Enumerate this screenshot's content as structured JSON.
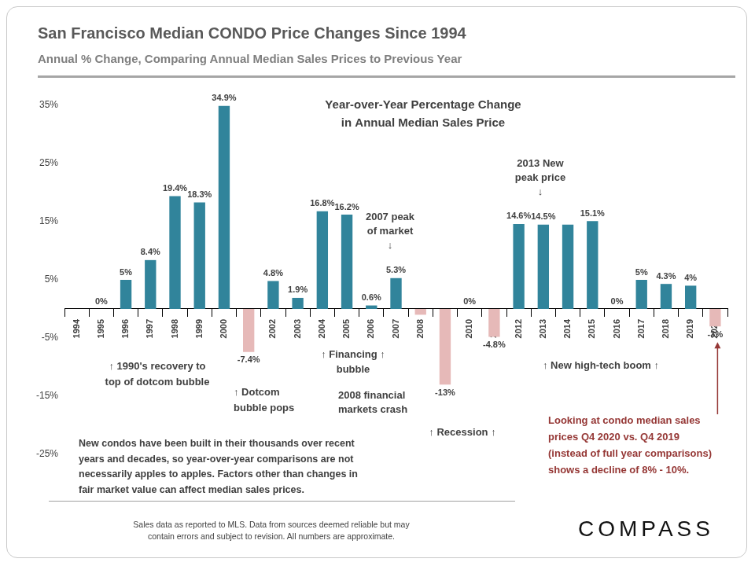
{
  "chart_data": {
    "type": "bar",
    "title": "San Francisco Median CONDO Price Changes Since 1994",
    "subtitle": "Annual % Change, Comparing Annual Median Sales Prices to Previous Year",
    "categories": [
      "1994",
      "1995",
      "1996",
      "1997",
      "1998",
      "1999",
      "2000",
      "2001",
      "2002",
      "2003",
      "2004",
      "2005",
      "2006",
      "2007",
      "2008",
      "2009",
      "2010",
      "2011",
      "2012",
      "2013",
      "2014",
      "2015",
      "2016",
      "2017",
      "2018",
      "2019",
      "2020"
    ],
    "values": [
      null,
      0,
      5,
      8.4,
      19.4,
      18.3,
      34.9,
      -7.4,
      4.8,
      1.9,
      16.8,
      16.2,
      0.6,
      5.3,
      -1,
      -13,
      0,
      -4.8,
      14.6,
      14.5,
      14.5,
      15.1,
      0,
      5,
      4.3,
      4,
      -3
    ],
    "value_labels": [
      null,
      "0%",
      "5%",
      "8.4%",
      "19.4%",
      "18.3%",
      "34.9%",
      "-7.4%",
      "4.8%",
      "1.9%",
      "16.8%",
      "16.2%",
      "0.6%",
      "5.3%",
      null,
      "-13%",
      "0%",
      "-4.8%",
      "14.6%",
      "14.5%",
      null,
      "15.1%",
      "0%",
      "5%",
      "4.3%",
      "4%",
      "-3%"
    ],
    "colors": [
      "#31849b",
      "#31849b",
      "#31849b",
      "#31849b",
      "#31849b",
      "#31849b",
      "#31849b",
      "#e6b9b8",
      "#31849b",
      "#31849b",
      "#31849b",
      "#31849b",
      "#31849b",
      "#31849b",
      "#e6b9b8",
      "#e6b9b8",
      "#31849b",
      "#e6b9b8",
      "#31849b",
      "#31849b",
      "#31849b",
      "#31849b",
      "#31849b",
      "#31849b",
      "#31849b",
      "#31849b",
      "#e6b9b8"
    ],
    "ylim": [
      -25,
      35
    ],
    "yticks": [
      {
        "value": -25,
        "label": "-25%"
      },
      {
        "value": -15,
        "label": "-15%"
      },
      {
        "value": -5,
        "label": "-5%"
      },
      {
        "value": 5,
        "label": "5%"
      },
      {
        "value": 15,
        "label": "15%"
      },
      {
        "value": 25,
        "label": "25%"
      },
      {
        "value": 35,
        "label": "35%"
      }
    ],
    "grid": false,
    "data_labels": true,
    "annotations": [
      "Year-over-Year Percentage Change\nin Annual Median Sales Price",
      "2013 New\npeak price\n↓",
      "2007 peak\nof market\n↓",
      "↑ 1990's recovery to\ntop of dotcom bubble",
      "↑ Dotcom\nbubble pops",
      "↑ Financing ↑\nbubble",
      "2008 financial\nmarkets crash",
      "↑ Recession ↑",
      "↑ New high-tech boom ↑",
      "Looking at condo median sales\nprices Q4 2020 vs. Q4 2019\n(instead of full year comparisons)\nshows a decline of 8% - 10%.",
      "New condos have been built in their thousands over recent\nyears and decades, so year-over-year comparisons are not\nnecessarily apples to apples. Factors other than changes in\nfair market value can affect median sales prices."
    ],
    "footnote": "Sales data as reported to MLS. Data from sources deemed reliable but may\ncontain errors and subject to revision. All numbers are approximate.",
    "logo": "COMPASS"
  }
}
